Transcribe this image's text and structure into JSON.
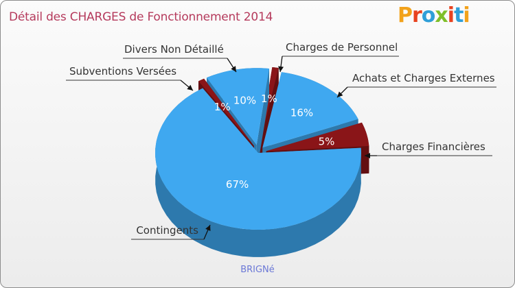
{
  "header": {
    "title": "Détail des CHARGES de Fonctionnement 2014",
    "logo": "Proxiti"
  },
  "chart_data": {
    "type": "pie",
    "title": "Détail des CHARGES de Fonctionnement 2014",
    "subtitle": "BRIGNé",
    "slices": [
      {
        "label": "Charges de Personnel",
        "value": 1,
        "pct_label": "1%",
        "color": "#8a1518"
      },
      {
        "label": "Achats et Charges Externes",
        "value": 16,
        "pct_label": "16%",
        "color": "#3fa8f0"
      },
      {
        "label": "Charges Financières",
        "value": 5,
        "pct_label": "5%",
        "color": "#8a1518"
      },
      {
        "label": "Contingents",
        "value": 67,
        "pct_label": "67%",
        "color": "#3fa8f0"
      },
      {
        "label": "Subventions Versées",
        "value": 1,
        "pct_label": "1%",
        "color": "#8a1518"
      },
      {
        "label": "Divers Non Détaillé",
        "value": 10,
        "pct_label": "10%",
        "color": "#3fa8f0"
      }
    ]
  },
  "colors": {
    "title": "#b53a5c",
    "subtitle": "#6b78d6"
  }
}
